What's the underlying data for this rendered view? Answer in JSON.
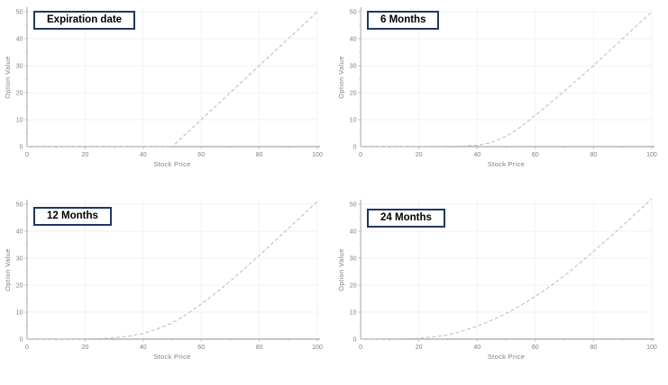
{
  "page": {
    "background": "#ffffff",
    "description": "2x2 grid of call option value charts versus stock price at different times to expiration"
  },
  "charts_shared": {
    "xlabel": "Stock Price",
    "ylabel": "Option Value",
    "x_ticks": [
      0,
      20,
      40,
      60,
      80,
      100
    ],
    "y_ticks": [
      0,
      10,
      20,
      30,
      40,
      50
    ],
    "xlim": [
      0,
      100
    ],
    "ylim": [
      0,
      52
    ],
    "grid": "on",
    "legend": "none",
    "line_style": "dashed",
    "line_color": "#aec5d8",
    "axis_color": "#a6a6a6",
    "tick_label_color": "#808080",
    "grid_color": "#f2f2f2",
    "label_box_border_color": "#1f3864",
    "label_box_text_color": "#000000"
  },
  "chart_data": [
    {
      "type": "line",
      "label": "Expiration date",
      "title": "Expiration date",
      "xlabel": "Stock Price",
      "ylabel": "Option Value",
      "xlim": [
        0,
        100
      ],
      "ylim": [
        0,
        52
      ],
      "x": [
        0,
        5,
        10,
        15,
        20,
        25,
        30,
        35,
        40,
        45,
        50,
        55,
        60,
        65,
        70,
        75,
        80,
        85,
        90,
        95,
        100
      ],
      "y": [
        0,
        0,
        0,
        0,
        0,
        0,
        0,
        0,
        0,
        0,
        0,
        5,
        10,
        15,
        20,
        25,
        30,
        35,
        40,
        45,
        50
      ]
    },
    {
      "type": "line",
      "label": "6 Months",
      "title": "6 Months",
      "xlabel": "Stock Price",
      "ylabel": "Option Value",
      "xlim": [
        0,
        100
      ],
      "ylim": [
        0,
        52
      ],
      "x": [
        0,
        5,
        10,
        15,
        20,
        25,
        30,
        35,
        40,
        45,
        50,
        55,
        60,
        65,
        70,
        75,
        80,
        85,
        90,
        95,
        100
      ],
      "y": [
        0,
        0,
        0,
        0,
        0,
        0.05,
        0.1,
        0.2,
        0.5,
        1.5,
        3.8,
        7.3,
        11.6,
        16.0,
        20.6,
        25.3,
        30.0,
        35.0,
        40.0,
        45.0,
        50.0
      ]
    },
    {
      "type": "line",
      "label": "12 Months",
      "title": "12 Months",
      "xlabel": "Stock Price",
      "ylabel": "Option Value",
      "xlim": [
        0,
        100
      ],
      "ylim": [
        0,
        52
      ],
      "x": [
        0,
        5,
        10,
        15,
        20,
        25,
        30,
        35,
        40,
        45,
        50,
        55,
        60,
        65,
        70,
        75,
        80,
        85,
        90,
        95,
        100
      ],
      "y": [
        0,
        0,
        0,
        0,
        0.05,
        0.2,
        0.5,
        1.1,
        2.1,
        3.8,
        6.0,
        9.2,
        13.0,
        17.1,
        21.5,
        26.2,
        31.0,
        36.0,
        41.0,
        46.0,
        51.0
      ]
    },
    {
      "type": "line",
      "label": "24 Months",
      "title": "24 Months",
      "xlabel": "Stock Price",
      "ylabel": "Option Value",
      "xlim": [
        0,
        100
      ],
      "ylim": [
        0,
        52
      ],
      "x": [
        0,
        5,
        10,
        15,
        20,
        25,
        30,
        35,
        40,
        45,
        50,
        55,
        60,
        65,
        70,
        75,
        80,
        85,
        90,
        95,
        100
      ],
      "y": [
        0,
        0,
        0.05,
        0.1,
        0.3,
        0.8,
        1.6,
        3.0,
        4.8,
        7.0,
        9.5,
        12.5,
        15.8,
        19.5,
        23.5,
        27.9,
        32.5,
        37.2,
        42.0,
        47.0,
        52.0
      ]
    }
  ]
}
